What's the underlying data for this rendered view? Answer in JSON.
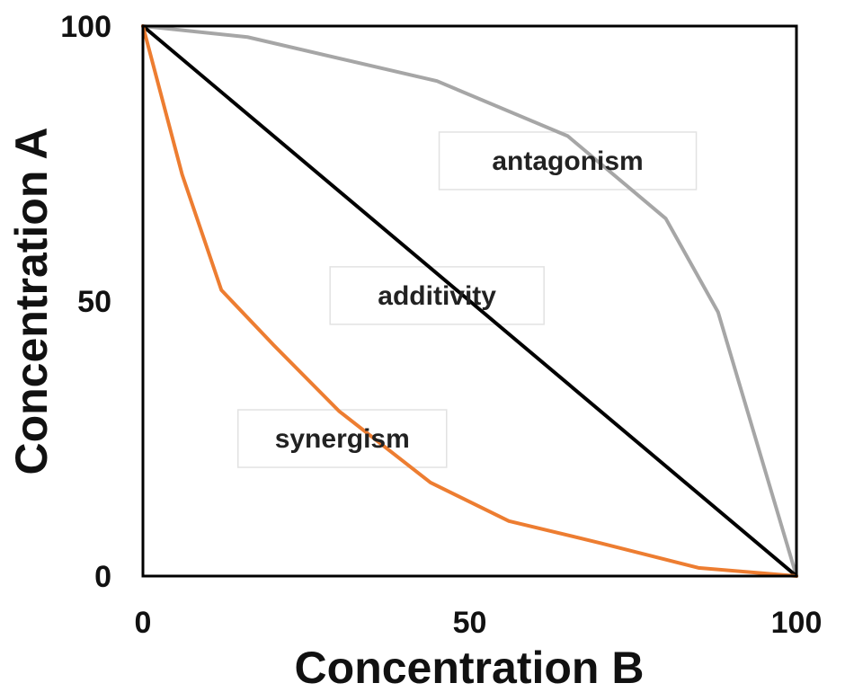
{
  "chart_data": {
    "type": "line",
    "title": "",
    "xlabel": "Concentration B",
    "ylabel": "Concentration A",
    "xlim": [
      0,
      100
    ],
    "ylim": [
      0,
      100
    ],
    "x_ticks": [
      "0",
      "50",
      "100"
    ],
    "y_ticks": [
      "0",
      "50",
      "100"
    ],
    "grid": false,
    "series": [
      {
        "color": "#a6a6a6",
        "points": [
          [
            0,
            100
          ],
          [
            16,
            98
          ],
          [
            45,
            90
          ],
          [
            65,
            80
          ],
          [
            80,
            65
          ],
          [
            88,
            48
          ],
          [
            100,
            0
          ]
        ]
      },
      {
        "color": "#000000",
        "points": [
          [
            0,
            100
          ],
          [
            100,
            0
          ]
        ]
      },
      {
        "color": "#ed7d31",
        "points": [
          [
            0,
            100
          ],
          [
            6,
            73
          ],
          [
            12,
            52
          ],
          [
            20,
            42
          ],
          [
            30,
            30
          ],
          [
            44,
            17
          ],
          [
            56,
            10
          ],
          [
            70,
            6
          ],
          [
            85,
            1.5
          ],
          [
            100,
            0
          ]
        ]
      }
    ],
    "annotations": [
      {
        "text": "antagonism",
        "x": 65,
        "y": 75.5
      },
      {
        "text": "additivity",
        "x": 45,
        "y": 51
      },
      {
        "text": "synergism",
        "x": 30.5,
        "y": 25
      }
    ]
  }
}
